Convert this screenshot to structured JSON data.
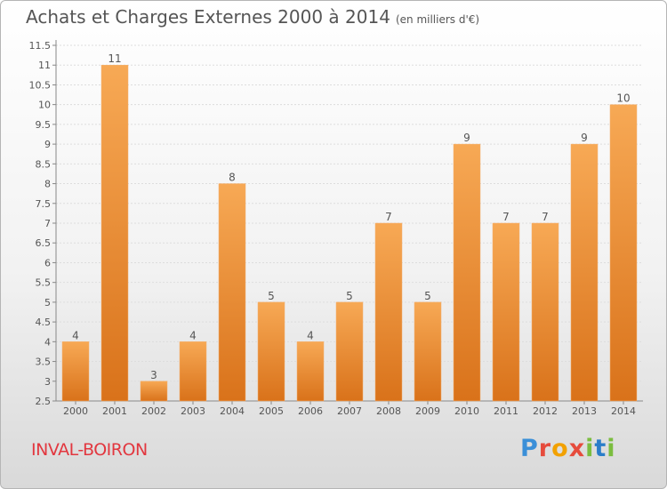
{
  "title": "Achats et Charges Externes 2000 à 2014",
  "unit": "(en milliers d'€)",
  "town": "INVAL-BOIRON",
  "logo": "Proxiti",
  "colors": {
    "bar": "#f0922e",
    "bar_light": "#f7a95a",
    "bar_dark": "#d9741a",
    "town": "#e2373f"
  },
  "chart_data": {
    "type": "bar",
    "title": "Achats et Charges Externes 2000 à 2014",
    "unit": "(en milliers d'€)",
    "categories": [
      "2000",
      "2001",
      "2002",
      "2003",
      "2004",
      "2005",
      "2006",
      "2007",
      "2008",
      "2009",
      "2010",
      "2011",
      "2012",
      "2013",
      "2014"
    ],
    "values": [
      4,
      11,
      3,
      4,
      8,
      5,
      4,
      5,
      7,
      5,
      9,
      7,
      7,
      9,
      10
    ],
    "ylim": [
      2.5,
      11.5
    ],
    "yticks": [
      "2.5",
      "3",
      "3.5",
      "4",
      "4.5",
      "5",
      "5.5",
      "6",
      "6.5",
      "7",
      "7.5",
      "8",
      "8.5",
      "9",
      "9.5",
      "10",
      "10.5",
      "11",
      "11.5"
    ],
    "grid": true,
    "legend": "none"
  }
}
